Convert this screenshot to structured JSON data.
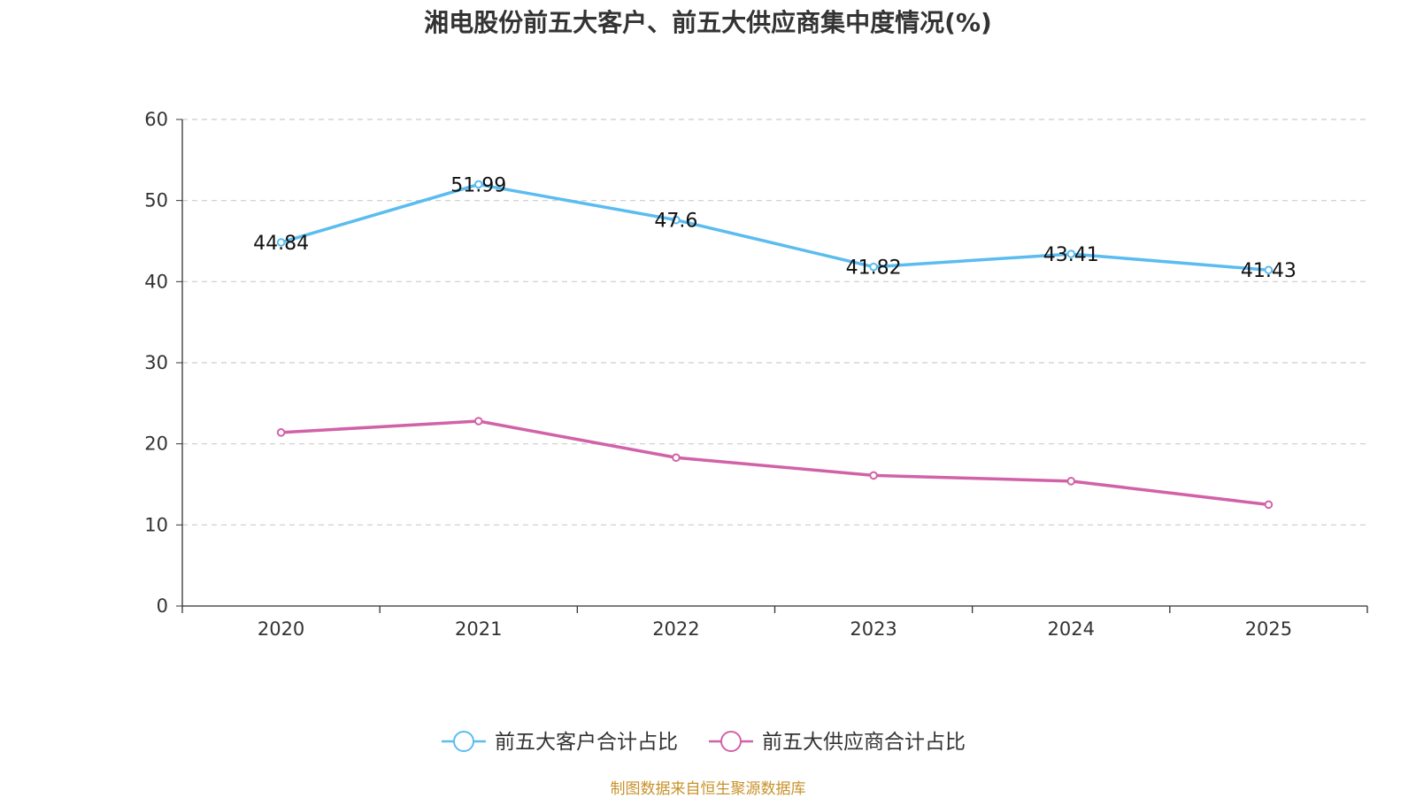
{
  "chart_data": {
    "type": "line",
    "title": "湘电股份前五大客户、前五大供应商集中度情况(%)",
    "categories": [
      "2020",
      "2021",
      "2022",
      "2023",
      "2024",
      "2025"
    ],
    "ylim": [
      0,
      60
    ],
    "yticks": [
      0,
      10,
      20,
      30,
      40,
      50,
      60
    ],
    "grid": true,
    "legend_position": "bottom",
    "series": [
      {
        "name": "前五大客户合计占比",
        "color": "#5bbcf0",
        "show_labels": true,
        "values": [
          44.84,
          51.99,
          47.6,
          41.82,
          43.41,
          41.43
        ],
        "labels": [
          "44.84",
          "51.99",
          "47.6",
          "41.82",
          "43.41",
          "41.43"
        ]
      },
      {
        "name": "前五大供应商合计占比",
        "color": "#d162a8",
        "show_labels": false,
        "values": [
          21.4,
          22.8,
          18.3,
          16.1,
          15.4,
          12.5
        ],
        "labels": []
      }
    ]
  },
  "source_note": {
    "text": "制图数据来自恒生聚源数据库",
    "color": "#c8922a"
  }
}
